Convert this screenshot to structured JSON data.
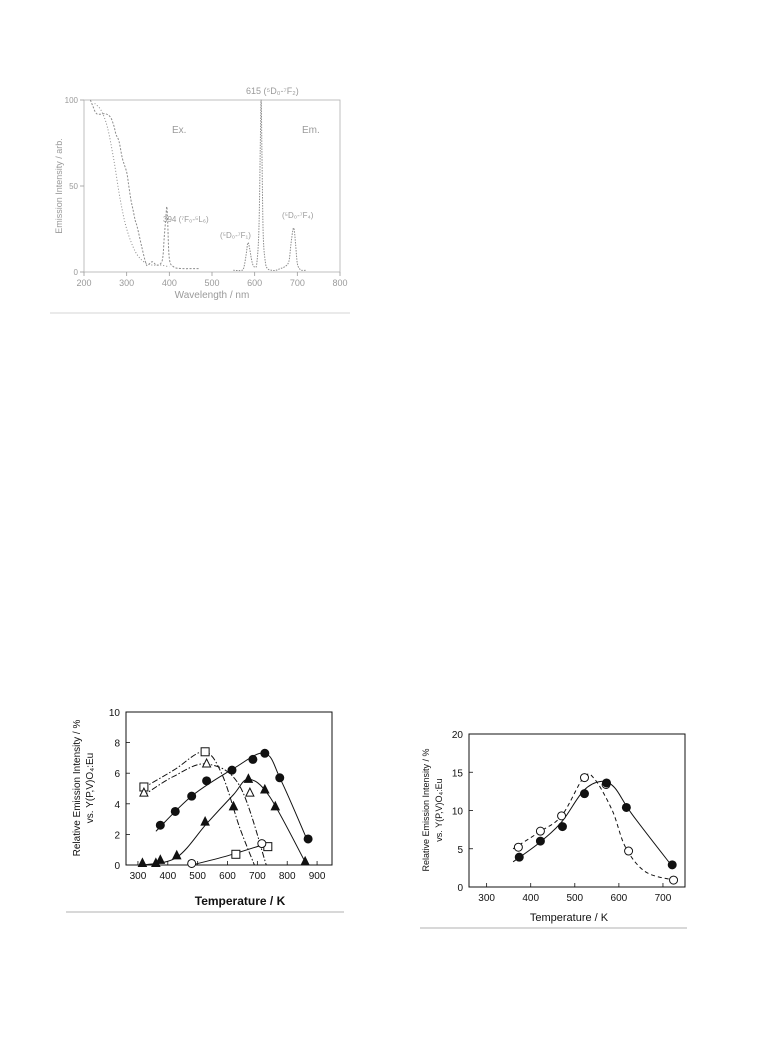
{
  "chart_data": [
    {
      "type": "line",
      "xlabel": "Wavelength / nm",
      "ylabel": "Emission Intensity / arb.",
      "xlim": [
        200,
        800
      ],
      "ylim": [
        0,
        100
      ],
      "x_ticks": [
        "200",
        "300",
        "400",
        "500",
        "600",
        "700",
        "800"
      ],
      "y_ticks": [
        "0",
        "50",
        "100"
      ],
      "annotations": [
        "615 (⁵D₀-⁷F₂)",
        "Ex.",
        "Em.",
        "394 (⁷F₀-⁵L₆)",
        "(⁵D₀-⁷F₁)",
        "(⁵D₀-⁷F₄)"
      ],
      "series": [
        {
          "name": "Ex.",
          "x": [
            215,
            220,
            230,
            250,
            262,
            270,
            275,
            282,
            290,
            300,
            305,
            310,
            315,
            320,
            325,
            335,
            345,
            350,
            360,
            370,
            380,
            385,
            388,
            392,
            394,
            396,
            400,
            410,
            430,
            460,
            470
          ],
          "y": [
            100,
            97,
            92,
            92,
            90,
            85,
            80,
            76,
            66,
            58,
            50,
            42,
            36,
            30,
            26,
            15,
            5,
            4,
            6,
            4,
            5,
            9,
            20,
            32,
            38,
            30,
            8,
            3,
            2,
            2,
            2
          ]
        },
        {
          "name": "Ex. (broad)",
          "x": [
            225,
            240,
            255,
            270,
            285,
            300,
            320,
            340,
            360,
            380,
            400
          ],
          "y": [
            98,
            94,
            84,
            65,
            42,
            25,
            12,
            6,
            4,
            4,
            3
          ]
        },
        {
          "name": "Em.",
          "x": [
            550,
            570,
            575,
            580,
            584,
            588,
            592,
            596,
            600,
            605,
            610,
            613,
            615,
            617,
            620,
            625,
            630,
            640,
            650,
            660,
            670,
            680,
            685,
            690,
            693,
            696,
            700,
            705,
            710,
            720
          ],
          "y": [
            1,
            1,
            3,
            10,
            17,
            14,
            8,
            4,
            3,
            5,
            25,
            70,
            100,
            70,
            22,
            6,
            2,
            1,
            1,
            2,
            3,
            6,
            16,
            25,
            24,
            16,
            5,
            2,
            1,
            1
          ]
        }
      ]
    },
    {
      "type": "scatter",
      "xlabel": "Temperature / K",
      "ylabel": "Relative Emission Intensity / %",
      "ylabel2": "vs. Y(P,V)O₄:Eu",
      "xlim": [
        260,
        950
      ],
      "ylim": [
        0,
        10
      ],
      "x_ticks": [
        300,
        400,
        500,
        600,
        700,
        800,
        900
      ],
      "y_ticks": [
        0,
        2,
        4,
        6,
        8,
        10
      ],
      "series": [
        {
          "name": "open square",
          "marker": "open-square",
          "line": "dashdot",
          "points": [
            [
              320,
              5.1
            ],
            [
              525,
              7.4
            ],
            [
              628,
              0.7
            ],
            [
              735,
              1.2
            ]
          ],
          "curve": [
            [
              315,
              5.0
            ],
            [
              420,
              6.2
            ],
            [
              520,
              7.4
            ],
            [
              580,
              6.0
            ],
            [
              640,
              2.5
            ],
            [
              690,
              0
            ]
          ]
        },
        {
          "name": "open triangle",
          "marker": "open-triangle",
          "line": "dashdot",
          "points": [
            [
              320,
              4.7
            ],
            [
              530,
              6.6
            ],
            [
              675,
              4.7
            ]
          ],
          "curve": [
            [
              315,
              4.5
            ],
            [
              420,
              5.8
            ],
            [
              530,
              6.6
            ],
            [
              640,
              5.2
            ],
            [
              730,
              0
            ]
          ]
        },
        {
          "name": "filled circle",
          "marker": "filled-circle",
          "line": "solid",
          "points": [
            [
              375,
              2.6
            ],
            [
              425,
              3.5
            ],
            [
              480,
              4.5
            ],
            [
              530,
              5.5
            ],
            [
              615,
              6.2
            ],
            [
              685,
              6.9
            ],
            [
              725,
              7.3
            ],
            [
              775,
              5.7
            ],
            [
              870,
              1.7
            ]
          ],
          "curve": [
            [
              360,
              2.2
            ],
            [
              480,
              4.5
            ],
            [
              620,
              6.3
            ],
            [
              725,
              7.3
            ],
            [
              780,
              5.5
            ],
            [
              870,
              1.5
            ]
          ]
        },
        {
          "name": "filled triangle",
          "marker": "filled-triangle",
          "line": "solid",
          "points": [
            [
              315,
              0.1
            ],
            [
              360,
              0.1
            ],
            [
              375,
              0.3
            ],
            [
              430,
              0.6
            ],
            [
              525,
              2.8
            ],
            [
              620,
              3.8
            ],
            [
              670,
              5.6
            ],
            [
              725,
              4.9
            ],
            [
              760,
              3.8
            ],
            [
              860,
              0.2
            ]
          ],
          "curve": [
            [
              320,
              0
            ],
            [
              430,
              0.5
            ],
            [
              530,
              2.7
            ],
            [
              620,
              4.6
            ],
            [
              670,
              5.6
            ],
            [
              740,
              4.5
            ],
            [
              860,
              0.2
            ]
          ]
        },
        {
          "name": "open circle",
          "marker": "open-circle",
          "line": "solid",
          "points": [
            [
              480,
              0.1
            ],
            [
              715,
              1.4
            ]
          ],
          "curve": [
            [
              480,
              0
            ],
            [
              600,
              0.6
            ],
            [
              715,
              1.3
            ]
          ]
        }
      ]
    },
    {
      "type": "scatter",
      "xlabel": "Temperature / K",
      "ylabel": "Relative Emission Intensity / %",
      "ylabel2": "vs. Y(P,V)O₄:Eu",
      "xlim": [
        260,
        750
      ],
      "ylim": [
        0,
        20
      ],
      "x_ticks": [
        300,
        400,
        500,
        600,
        700
      ],
      "y_ticks": [
        0,
        5,
        10,
        15,
        20
      ],
      "series": [
        {
          "name": "open circle",
          "marker": "open-circle",
          "line": "dashed",
          "points": [
            [
              372,
              5.2
            ],
            [
              422,
              7.3
            ],
            [
              470,
              9.3
            ],
            [
              522,
              14.3
            ],
            [
              571,
              13.4
            ],
            [
              622,
              4.7
            ],
            [
              724,
              0.9
            ]
          ],
          "curve": [
            [
              360,
              5.0
            ],
            [
              420,
              7.2
            ],
            [
              470,
              9.3
            ],
            [
              520,
              14.3
            ],
            [
              545,
              14.1
            ],
            [
              585,
              10.0
            ],
            [
              615,
              5.2
            ],
            [
              660,
              2.0
            ],
            [
              724,
              0.9
            ]
          ]
        },
        {
          "name": "filled circle",
          "marker": "filled-circle",
          "line": "solid",
          "points": [
            [
              374,
              3.9
            ],
            [
              422,
              6.0
            ],
            [
              472,
              7.9
            ],
            [
              522,
              12.2
            ],
            [
              572,
              13.6
            ],
            [
              617,
              10.4
            ],
            [
              721,
              2.9
            ]
          ],
          "curve": [
            [
              360,
              3.3
            ],
            [
              420,
              5.8
            ],
            [
              470,
              8.5
            ],
            [
              520,
              12.6
            ],
            [
              560,
              13.8
            ],
            [
              590,
              13.0
            ],
            [
              630,
              9.5
            ],
            [
              721,
              2.7
            ]
          ]
        }
      ]
    }
  ]
}
